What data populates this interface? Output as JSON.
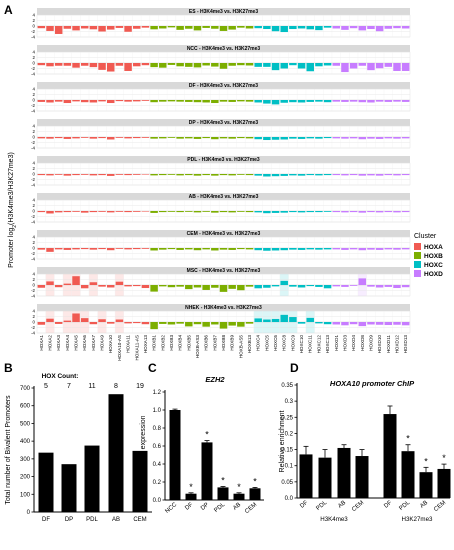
{
  "panel_labels": {
    "a": "A",
    "b": "B",
    "c": "C",
    "d": "D"
  },
  "legend": {
    "title": "Cluster",
    "items": [
      {
        "label": "HOXA",
        "color": "#f05a52"
      },
      {
        "label": "HOXB",
        "color": "#7cae00"
      },
      {
        "label": "HOXC",
        "color": "#00bfc4"
      },
      {
        "label": "HOXD",
        "color": "#c77cff"
      }
    ]
  },
  "chart_data": [
    {
      "type": "bar",
      "id": "A",
      "ylabel": "Promoter log2(H3K4me3/H3K27me3)",
      "yticks": [
        4,
        2,
        0,
        -2,
        -4
      ],
      "ylim": [
        -4,
        4
      ],
      "categories": [
        "HOXA1",
        "HOXA2",
        "HOXA3",
        "HOXA4",
        "HOXA5",
        "HOXA6",
        "HOXA7",
        "HOXA9",
        "HOXA10",
        "HOXA10-AS",
        "HOXA11",
        "HOXA11-AS",
        "HOXA13",
        "HOXB1",
        "HOXB2",
        "HOXB3",
        "HOXB4",
        "HOXB5",
        "HOXB-AS3",
        "HOXB6",
        "HOXB7",
        "HOXB8",
        "HOXB9",
        "HOXB-AS5",
        "HOXB13",
        "HOXC4",
        "HOXC5",
        "HOXC6",
        "HOXC8",
        "HOXC9",
        "HOXC10",
        "HOXC11",
        "HOXC12",
        "HOXC13",
        "HOXD1",
        "HOXD3",
        "HOXD4",
        "HOXD8",
        "HOXD9",
        "HOXD10",
        "HOXD11",
        "HOXD12",
        "HOXD13"
      ],
      "series": [
        {
          "name": "ES - H3K4me3 vs. H3K27me3",
          "values": [
            -0.8,
            -1.8,
            -2.9,
            -1.0,
            -1.6,
            -0.9,
            -1.2,
            -2.0,
            -1.3,
            -0.7,
            -2.1,
            -1.0,
            -0.6,
            -1.2,
            -0.9,
            -0.5,
            -1.4,
            -1.0,
            -1.6,
            -0.7,
            -1.0,
            -1.8,
            -1.3,
            -0.6,
            -0.9,
            -0.8,
            -1.1,
            -1.9,
            -2.2,
            -1.1,
            -0.9,
            -1.2,
            -1.5,
            -0.6,
            -0.9,
            -1.4,
            -0.8,
            -1.6,
            -1.1,
            -1.9,
            -1.0,
            -0.8,
            -0.9
          ]
        },
        {
          "name": "NCC - H3K4me3 vs. H3K27me3",
          "values": [
            -0.8,
            -1.2,
            -1.0,
            -1.0,
            -1.7,
            -1.0,
            -1.5,
            -2.5,
            -3.1,
            -1.0,
            -2.9,
            -1.2,
            -0.8,
            -1.5,
            -1.7,
            -0.7,
            -1.2,
            -1.4,
            -1.6,
            -0.9,
            -1.3,
            -2.1,
            -1.0,
            -0.8,
            -0.9,
            -1.4,
            -1.4,
            -2.6,
            -2.0,
            -0.8,
            -2.0,
            -3.0,
            -1.2,
            -0.9,
            -1.0,
            -3.3,
            -2.0,
            -1.0,
            -2.6,
            -1.9,
            -1.4,
            -2.9,
            -2.9
          ]
        },
        {
          "name": "DF - H3K4me3 vs. H3K27me3",
          "values": [
            -0.7,
            -0.9,
            -0.6,
            -1.1,
            -0.5,
            -0.8,
            -0.9,
            -0.5,
            -1.1,
            -0.4,
            -0.6,
            -0.5,
            -0.3,
            -0.8,
            -0.6,
            -0.5,
            -0.6,
            -0.7,
            -0.8,
            -0.9,
            -1.1,
            -0.6,
            -0.7,
            -0.5,
            -0.6,
            -0.9,
            -1.3,
            -1.6,
            -1.0,
            -0.8,
            -0.9,
            -0.7,
            -0.6,
            -0.8,
            -0.6,
            -0.7,
            -0.6,
            -0.8,
            -0.9,
            -0.6,
            -0.7,
            -0.6,
            -0.7
          ]
        },
        {
          "name": "DP - H3K4me3 vs. H3K27me3",
          "values": [
            -0.5,
            -0.6,
            -0.4,
            -0.7,
            -0.5,
            -0.3,
            -0.6,
            -0.4,
            -0.9,
            -0.3,
            -0.5,
            -0.4,
            -0.3,
            -0.6,
            -0.5,
            -0.3,
            -0.6,
            -0.5,
            -0.7,
            -0.4,
            -0.8,
            -0.5,
            -0.6,
            -0.4,
            -0.5,
            -0.8,
            -1.1,
            -1.0,
            -0.9,
            -0.6,
            -0.7,
            -0.5,
            -0.6,
            -0.4,
            -0.5,
            -0.6,
            -0.5,
            -0.8,
            -0.6,
            -0.7,
            -0.5,
            -0.6,
            -0.5
          ]
        },
        {
          "name": "PDL - H3K4me3 vs. H3K27me3",
          "values": [
            -0.4,
            -0.5,
            -0.3,
            -0.6,
            -0.4,
            -0.3,
            -0.5,
            -0.4,
            -0.7,
            -0.3,
            -0.4,
            -0.3,
            -0.2,
            -0.5,
            -0.4,
            -0.3,
            -0.5,
            -0.4,
            -0.6,
            -0.4,
            -0.6,
            -0.4,
            -0.5,
            -0.3,
            -0.4,
            -0.6,
            -0.9,
            -0.8,
            -0.7,
            -0.5,
            -0.6,
            -0.4,
            -0.5,
            -0.4,
            -0.4,
            -0.5,
            -0.4,
            -0.6,
            -0.5,
            -0.6,
            -0.4,
            -0.5,
            -0.4
          ]
        },
        {
          "name": "AB - H3K4me3 vs. H3K27me3",
          "values": [
            -0.4,
            -0.9,
            -0.5,
            -0.4,
            -0.3,
            -0.6,
            -0.4,
            -0.3,
            -0.5,
            -0.3,
            -0.4,
            -0.3,
            -0.2,
            -0.7,
            -0.4,
            -0.3,
            -0.4,
            -0.3,
            -0.5,
            -0.3,
            -0.6,
            -0.4,
            -0.5,
            -0.3,
            -0.4,
            -0.5,
            -0.8,
            -0.7,
            -0.6,
            -0.4,
            -0.5,
            -0.4,
            -0.4,
            -0.3,
            -0.4,
            -0.5,
            -0.4,
            -0.6,
            -0.4,
            -0.5,
            -0.4,
            -0.5,
            -0.4
          ]
        },
        {
          "name": "CEM - H3K4me3 vs. H3K27me3",
          "values": [
            -0.6,
            -1.4,
            -0.5,
            -0.7,
            -0.5,
            -0.4,
            -0.6,
            -0.4,
            -0.8,
            -0.3,
            -0.5,
            -0.4,
            -0.3,
            -0.9,
            -0.6,
            -0.4,
            -0.7,
            -0.5,
            -0.8,
            -0.5,
            -0.9,
            -0.6,
            -0.7,
            -0.4,
            -0.5,
            -0.8,
            -1.0,
            -0.9,
            -0.8,
            -0.6,
            -0.7,
            -0.5,
            -0.6,
            -0.5,
            -0.5,
            -0.7,
            -0.5,
            -0.8,
            -0.6,
            -0.7,
            -0.5,
            -0.6,
            -0.5
          ]
        },
        {
          "name": "MSC - H3K4me3 vs. H3K27me3",
          "values": [
            -1.0,
            1.3,
            -0.8,
            0.5,
            3.2,
            -1.2,
            1.0,
            -0.6,
            -0.9,
            1.2,
            -0.5,
            -0.4,
            -1.1,
            -2.4,
            -0.5,
            -0.8,
            -0.6,
            -1.5,
            -0.9,
            -1.8,
            -1.0,
            -2.5,
            -1.4,
            -1.9,
            -0.6,
            -1.2,
            -1.0,
            -0.5,
            1.5,
            -0.6,
            -0.9,
            -0.4,
            -0.7,
            -1.2,
            -0.5,
            -0.7,
            -0.3,
            2.4,
            -0.6,
            -0.9,
            -0.7,
            -1.1,
            -0.8
          ]
        },
        {
          "name": "NHEK - H3K4me3 vs. H3K27me3",
          "values": [
            -1.0,
            1.2,
            -0.7,
            0.5,
            3.1,
            1.4,
            -0.8,
            1.0,
            -0.6,
            0.9,
            -0.5,
            -0.4,
            -0.8,
            -2.6,
            -0.7,
            -0.9,
            -0.6,
            -1.6,
            -0.8,
            -1.7,
            -0.9,
            -2.4,
            -1.3,
            -1.7,
            -0.6,
            1.3,
            0.9,
            1.1,
            2.6,
            1.8,
            -0.6,
            1.5,
            -0.5,
            -0.8,
            -0.9,
            -1.2,
            -0.8,
            -1.5,
            -0.9,
            -1.0,
            -1.1,
            -1.0,
            -1.2
          ]
        }
      ]
    },
    {
      "type": "bar",
      "id": "B",
      "header_label": "HOX Count:",
      "counts": [
        "5",
        "7",
        "11",
        "8",
        "19"
      ],
      "categories": [
        "DF",
        "DP",
        "PDL",
        "AB",
        "CEM"
      ],
      "values": [
        335,
        270,
        375,
        665,
        345
      ],
      "ylabel": "Total number of Bivalent Promoters",
      "yticks": [
        0,
        100,
        200,
        300,
        400,
        500,
        600,
        700
      ],
      "ylim": [
        0,
        700
      ]
    },
    {
      "type": "bar",
      "id": "C",
      "title": "EZH2",
      "categories": [
        "NCC",
        "DF",
        "DP",
        "PDL",
        "AB",
        "CEM"
      ],
      "values": [
        1.0,
        0.07,
        0.64,
        0.14,
        0.07,
        0.13
      ],
      "errors": [
        0.01,
        0.01,
        0.02,
        0.01,
        0.01,
        0.01
      ],
      "significance": [
        "",
        "*",
        "*",
        "*",
        "*",
        "*"
      ],
      "ylabel": "Relative expression",
      "yticks": [
        0.0,
        0.2,
        0.4,
        0.6,
        0.8,
        1.0,
        1.2
      ],
      "ylim": [
        0,
        1.2
      ]
    },
    {
      "type": "bar",
      "id": "D",
      "title": "HOXA10 promoter ChIP",
      "categories": [
        "DF",
        "PDL",
        "AB",
        "CEM",
        "DF",
        "PDL",
        "AB",
        "CEM"
      ],
      "groups": [
        "H3K4me3",
        "H3K27me3"
      ],
      "values": [
        0.135,
        0.125,
        0.155,
        0.13,
        0.26,
        0.145,
        0.08,
        0.09
      ],
      "errors": [
        0.025,
        0.025,
        0.01,
        0.02,
        0.025,
        0.02,
        0.015,
        0.015
      ],
      "significance": [
        "",
        "",
        "",
        "",
        "",
        "*",
        "*",
        "*"
      ],
      "ylabel": "Relative enrichment",
      "yticks": [
        0.0,
        0.05,
        0.1,
        0.15,
        0.2,
        0.25,
        0.3,
        0.35
      ],
      "ylim": [
        0,
        0.35
      ]
    }
  ]
}
